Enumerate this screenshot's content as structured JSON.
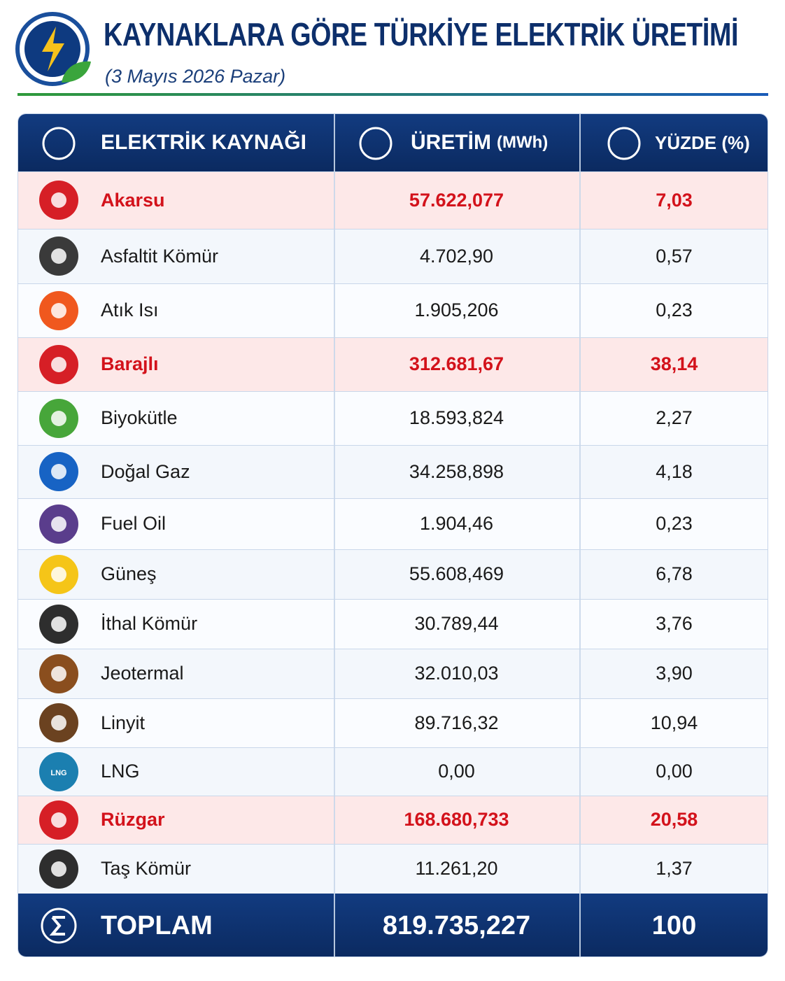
{
  "header": {
    "title": "KAYNAKLARA GÖRE TÜRKİYE ELEKTRİK ÜRETİMİ",
    "subtitle": "(3 Mayıs 2026 Pazar)"
  },
  "table": {
    "columns": [
      {
        "label": "ELEKTRİK KAYNAĞI"
      },
      {
        "label": "ÜRETİM",
        "unit": "(MWh)"
      },
      {
        "label": "YÜZDE (%)"
      }
    ],
    "rows": [
      {
        "name": "Akarsu",
        "production": "57.622,077",
        "percent": "7,03",
        "highlight": true
      },
      {
        "name": "Asfaltit Kömür",
        "production": "4.702,90",
        "percent": "0,57",
        "highlight": false
      },
      {
        "name": "Atık Isı",
        "production": "1.905,206",
        "percent": "0,23",
        "highlight": false
      },
      {
        "name": "Barajlı",
        "production": "312.681,67",
        "percent": "38,14",
        "highlight": true
      },
      {
        "name": "Biyokütle",
        "production": "18.593,824",
        "percent": "2,27",
        "highlight": false
      },
      {
        "name": "Doğal Gaz",
        "production": "34.258,898",
        "percent": "4,18",
        "highlight": false
      },
      {
        "name": "Fuel Oil",
        "production": "1.904,46",
        "percent": "0,23",
        "highlight": false
      },
      {
        "name": "Güneş",
        "production": "55.608,469",
        "percent": "6,78",
        "highlight": false
      },
      {
        "name": "İthal Kömür",
        "production": "30.789,44",
        "percent": "3,76",
        "highlight": false
      },
      {
        "name": "Jeotermal",
        "production": "32.010,03",
        "percent": "3,90",
        "highlight": false
      },
      {
        "name": "Linyit",
        "production": "89.716,32",
        "percent": "10,94",
        "highlight": false
      },
      {
        "name": "LNG",
        "production": "0,00",
        "percent": "0,00",
        "highlight": false,
        "icon_label": "LNG"
      },
      {
        "name": "Rüzgar",
        "production": "168.680,733",
        "percent": "20,58",
        "highlight": true
      },
      {
        "name": "Taş Kömür",
        "production": "11.261,20",
        "percent": "1,37",
        "highlight": false
      }
    ],
    "total": {
      "label": "TOPLAM",
      "production": "819.735,227",
      "percent": "100"
    }
  }
}
